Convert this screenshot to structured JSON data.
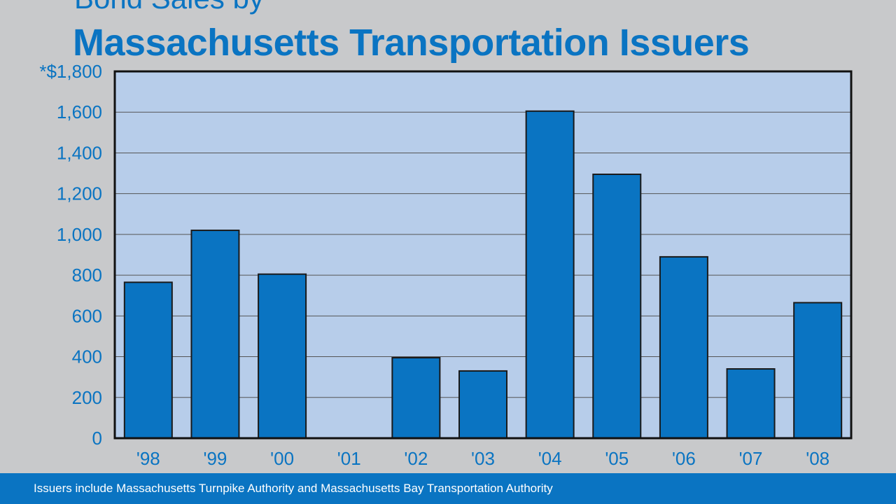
{
  "title": {
    "line1": "Bond Sales by",
    "line2": "Massachusetts Transportation Issuers"
  },
  "footer": {
    "note": "Issuers include Massachusetts Turnpike Authority and Massachusetts Bay Transportation Authority"
  },
  "colors": {
    "accent": "#0a74c2",
    "bar": "#0a74c2",
    "plot_background": "#b7cdea",
    "page_background": "#c8c9cb"
  },
  "chart_data": {
    "type": "bar",
    "title": "Bond Sales by Massachusetts Transportation Issuers",
    "categories": [
      "'98",
      "'99",
      "'00",
      "'01",
      "'02",
      "'03",
      "'04",
      "'05",
      "'06",
      "'07",
      "'08"
    ],
    "values": [
      765,
      1020,
      805,
      0,
      395,
      330,
      1605,
      1295,
      890,
      340,
      665
    ],
    "ylim": [
      0,
      1800
    ],
    "yticks": [
      0,
      200,
      400,
      600,
      800,
      1000,
      1200,
      1400,
      1600,
      1800
    ],
    "ytick_labels": [
      "0",
      "200",
      "400",
      "600",
      "800",
      "1,000",
      "1,200",
      "1,400",
      "1,600",
      "*$1,800"
    ],
    "grid": true,
    "xlabel": "",
    "ylabel": ""
  }
}
